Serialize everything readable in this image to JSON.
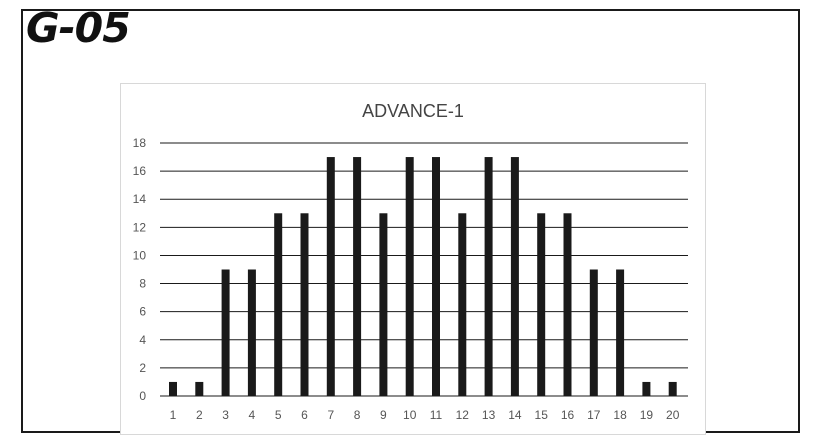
{
  "header": {
    "label": "G-05"
  },
  "chart_data": {
    "type": "bar",
    "title": "ADVANCE-1",
    "xlabel": "",
    "ylabel": "",
    "categories": [
      "1",
      "2",
      "3",
      "4",
      "5",
      "6",
      "7",
      "8",
      "9",
      "10",
      "11",
      "12",
      "13",
      "14",
      "15",
      "16",
      "17",
      "18",
      "19",
      "20"
    ],
    "values": [
      1,
      1,
      9,
      9,
      13,
      13,
      17,
      17,
      13,
      17,
      17,
      13,
      17,
      17,
      13,
      13,
      9,
      9,
      1,
      1
    ],
    "ylim": [
      0,
      18
    ],
    "yticks": [
      "0",
      "2",
      "4",
      "6",
      "8",
      "10",
      "12",
      "14",
      "16",
      "18"
    ],
    "grid": true,
    "legend": "none",
    "bar_color": "#1a1a1a",
    "grid_color": "#1a1a1a"
  }
}
